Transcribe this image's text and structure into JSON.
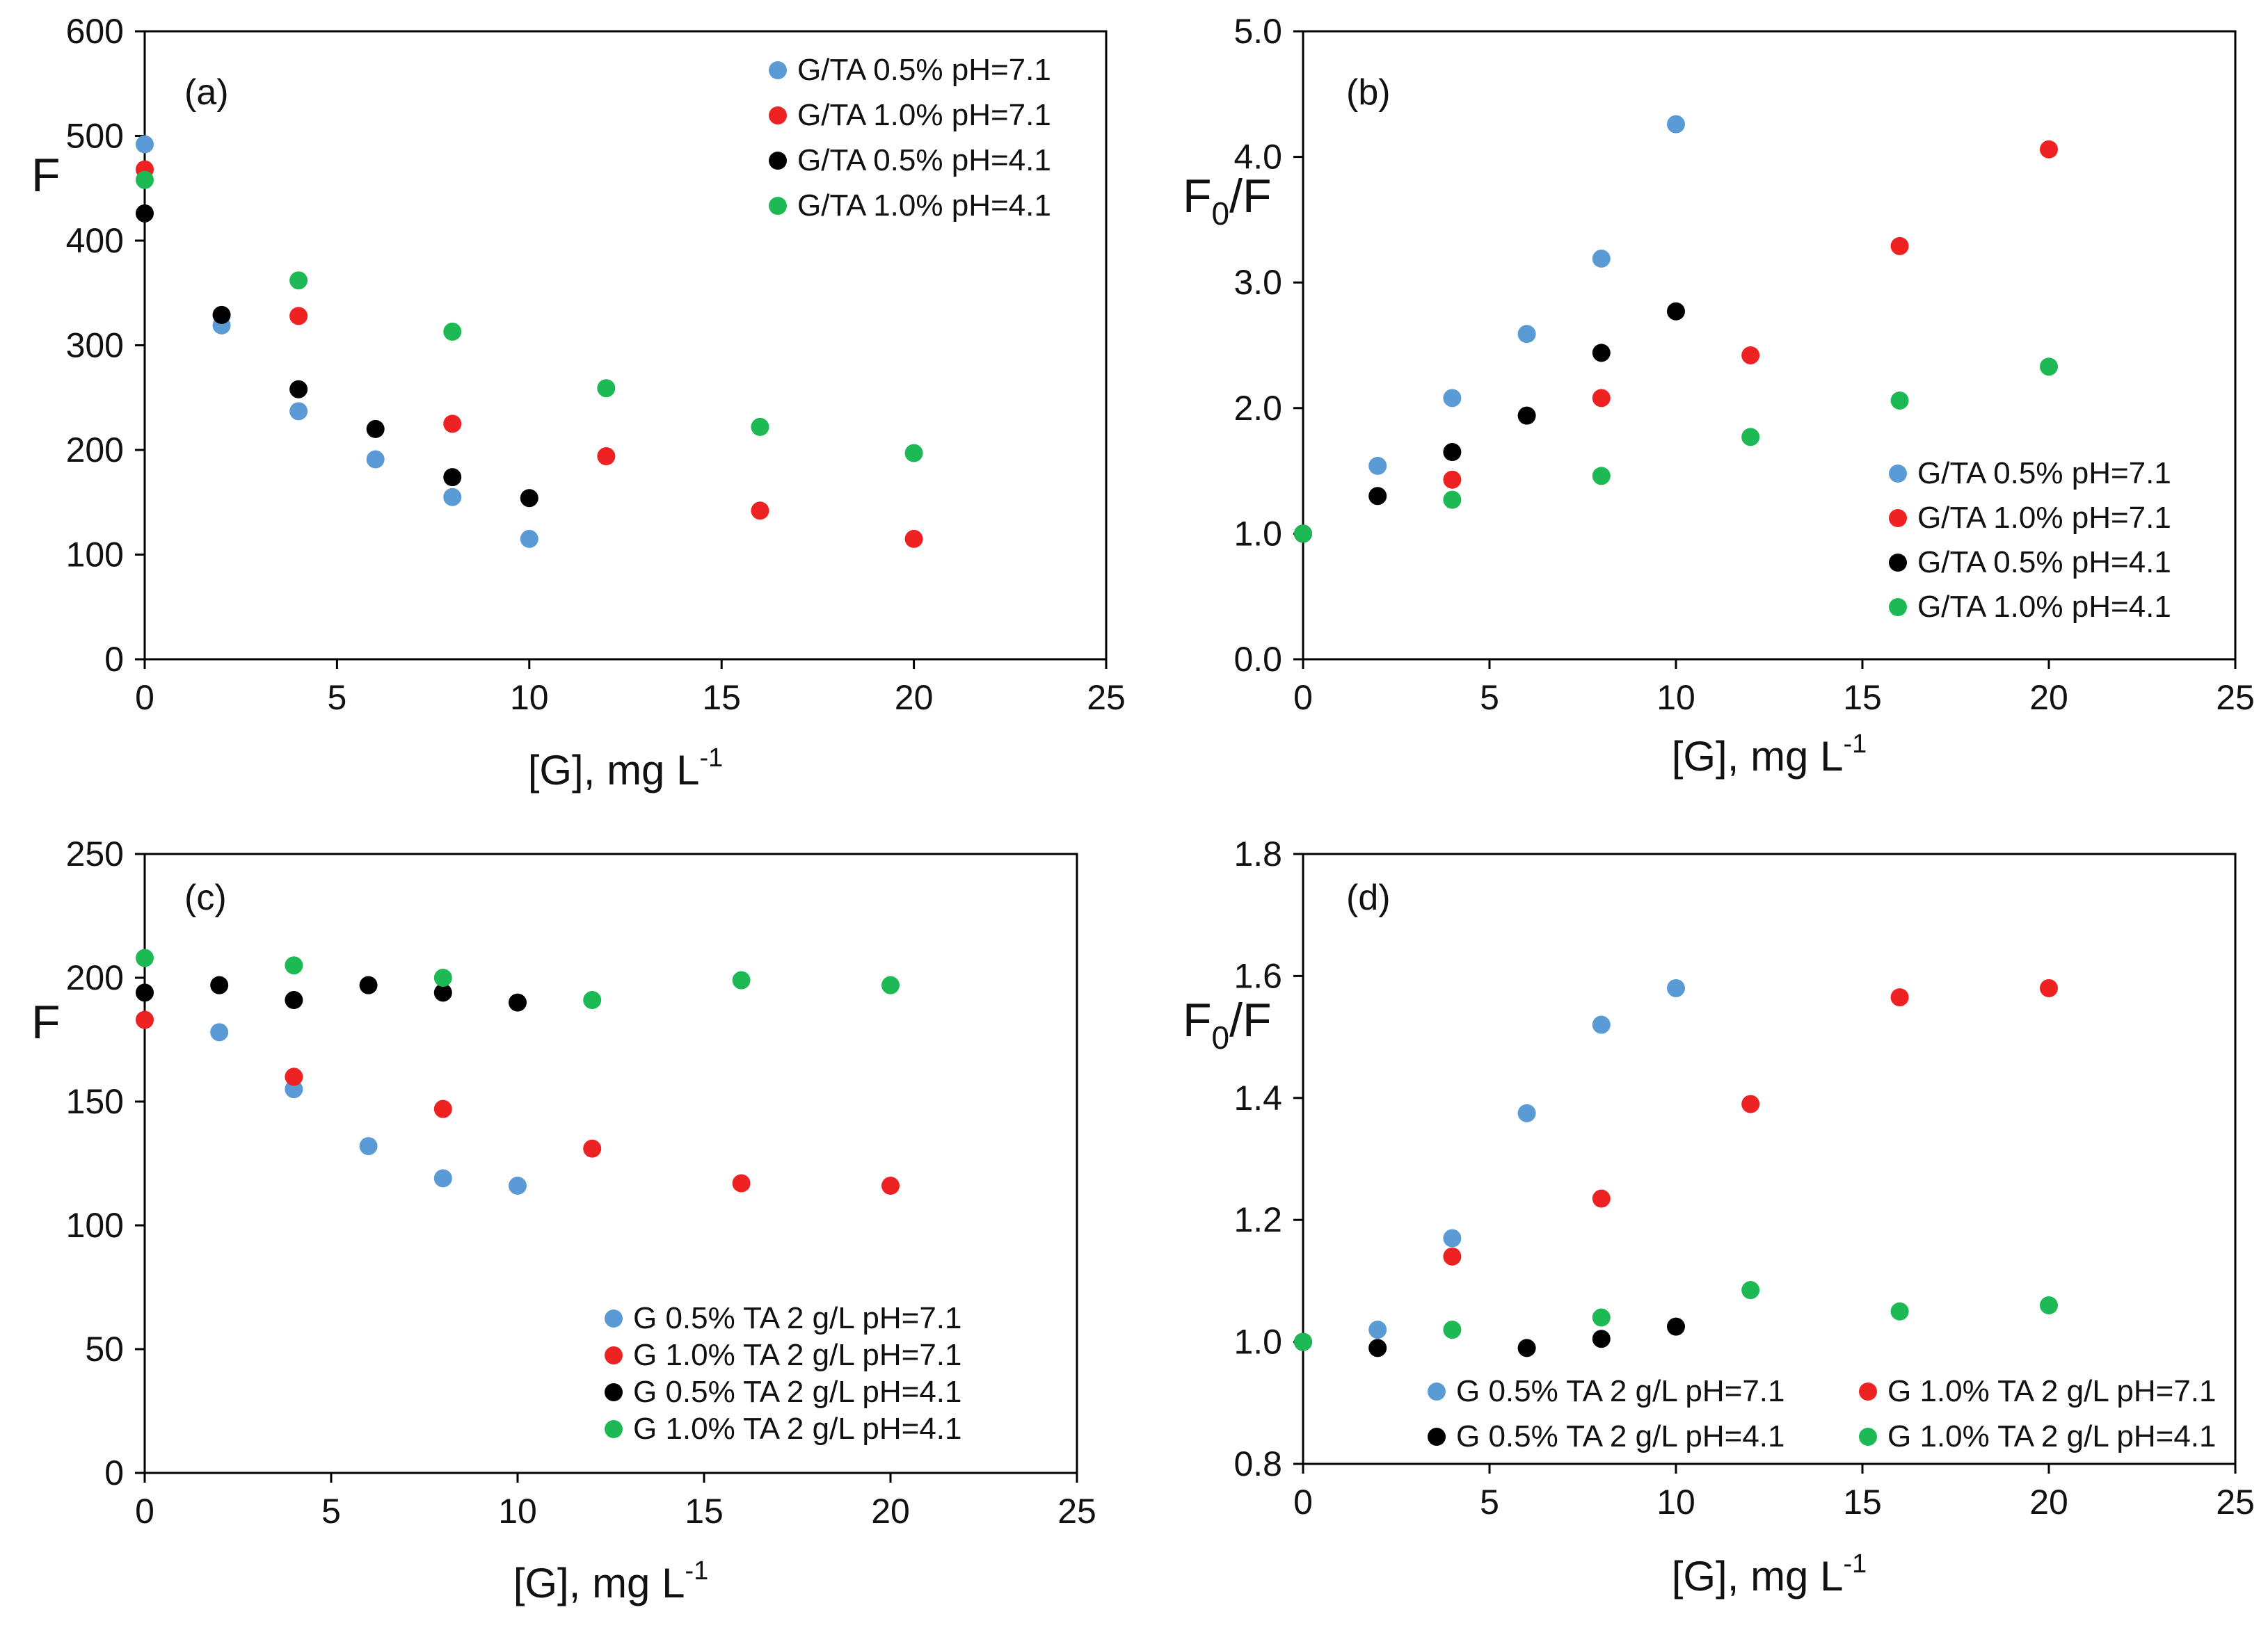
{
  "chart_data": [
    {
      "type": "scatter",
      "panel_label": "(a)",
      "xlabel": "[G], mg L",
      "xlabel_sup": "-1",
      "ylabel": "F",
      "ylabel_sub": "",
      "ylabel_tail": "",
      "xlim": [
        0,
        25
      ],
      "ylim": [
        0,
        600
      ],
      "xticks": [
        0,
        5,
        10,
        15,
        20,
        25
      ],
      "yticks": [
        0,
        100,
        200,
        300,
        400,
        500,
        600
      ],
      "ytick_labels": [
        "0",
        "100",
        "200",
        "300",
        "400",
        "500",
        "600"
      ],
      "grid": false,
      "legend_position": "top-right",
      "series": [
        {
          "name": "G/TA 0.5% pH=7.1",
          "color": "#5b9bd5",
          "x": [
            0,
            2,
            4,
            6,
            8,
            10
          ],
          "y": [
            492,
            319,
            237,
            191,
            155,
            115
          ]
        },
        {
          "name": "G/TA 1.0% pH=7.1",
          "color": "#ee2222",
          "x": [
            0,
            4,
            8,
            12,
            16,
            20
          ],
          "y": [
            468,
            328,
            225,
            194,
            142,
            115
          ]
        },
        {
          "name": "G/TA 0.5% pH=4.1",
          "color": "#000000",
          "x": [
            0,
            2,
            4,
            6,
            8,
            10
          ],
          "y": [
            426,
            329,
            258,
            220,
            174,
            154
          ]
        },
        {
          "name": "G/TA 1.0% pH=4.1",
          "color": "#1db954",
          "x": [
            0,
            4,
            8,
            12,
            16,
            20
          ],
          "y": [
            458,
            362,
            313,
            259,
            222,
            197
          ]
        }
      ]
    },
    {
      "type": "scatter",
      "panel_label": "(b)",
      "xlabel": "[G], mg L",
      "xlabel_sup": "-1",
      "ylabel": "F",
      "ylabel_sub": "0",
      "ylabel_tail": "/F",
      "xlim": [
        0,
        25
      ],
      "ylim": [
        0,
        5
      ],
      "xticks": [
        0,
        5,
        10,
        15,
        20,
        25
      ],
      "yticks": [
        0,
        1,
        2,
        3,
        4,
        5
      ],
      "ytick_labels": [
        "0.0",
        "1.0",
        "2.0",
        "3.0",
        "4.0",
        "5.0"
      ],
      "grid": false,
      "legend_position": "bottom-right",
      "series": [
        {
          "name": "G/TA 0.5% pH=7.1",
          "color": "#5b9bd5",
          "x": [
            0,
            2,
            4,
            6,
            8,
            10
          ],
          "y": [
            1.0,
            1.54,
            2.08,
            2.59,
            3.19,
            4.26
          ]
        },
        {
          "name": "G/TA 1.0% pH=7.1",
          "color": "#ee2222",
          "x": [
            0,
            4,
            8,
            12,
            16,
            20
          ],
          "y": [
            1.0,
            1.43,
            2.08,
            2.42,
            3.29,
            4.06
          ]
        },
        {
          "name": "G/TA 0.5% pH=4.1",
          "color": "#000000",
          "x": [
            0,
            2,
            4,
            6,
            8,
            10
          ],
          "y": [
            1.0,
            1.3,
            1.65,
            1.94,
            2.44,
            2.77
          ]
        },
        {
          "name": "G/TA 1.0% pH=4.1",
          "color": "#1db954",
          "x": [
            0,
            4,
            8,
            12,
            16,
            20
          ],
          "y": [
            1.0,
            1.27,
            1.46,
            1.77,
            2.06,
            2.33
          ]
        }
      ]
    },
    {
      "type": "scatter",
      "panel_label": "(c)",
      "xlabel": "[G], mg L",
      "xlabel_sup": "-1",
      "ylabel": "F",
      "ylabel_sub": "",
      "ylabel_tail": "",
      "xlim": [
        0,
        25
      ],
      "ylim": [
        0,
        250
      ],
      "xticks": [
        0,
        5,
        10,
        15,
        20,
        25
      ],
      "yticks": [
        0,
        50,
        100,
        150,
        200,
        250
      ],
      "ytick_labels": [
        "0",
        "50",
        "100",
        "150",
        "200",
        "250"
      ],
      "grid": false,
      "legend_position": "bottom-right",
      "series": [
        {
          "name": "G 0.5% TA 2 g/L pH=7.1",
          "color": "#5b9bd5",
          "x": [
            0,
            2,
            4,
            6,
            8,
            10
          ],
          "y": [
            183,
            178,
            155,
            132,
            119,
            116
          ]
        },
        {
          "name": "G 1.0% TA 2 g/L pH=7.1",
          "color": "#ee2222",
          "x": [
            0,
            4,
            8,
            12,
            16,
            20
          ],
          "y": [
            183,
            160,
            147,
            131,
            117,
            116
          ]
        },
        {
          "name": "G 0.5% TA 2 g/L pH=4.1",
          "color": "#000000",
          "x": [
            0,
            2,
            4,
            6,
            8,
            10
          ],
          "y": [
            194,
            197,
            191,
            197,
            194,
            190
          ]
        },
        {
          "name": "G 1.0% TA 2 g/L pH=4.1",
          "color": "#1db954",
          "x": [
            0,
            4,
            8,
            12,
            16,
            20
          ],
          "y": [
            208,
            205,
            200,
            191,
            199,
            197
          ]
        }
      ]
    },
    {
      "type": "scatter",
      "panel_label": "(d)",
      "xlabel": "[G], mg L",
      "xlabel_sup": "-1",
      "ylabel": "F",
      "ylabel_sub": "0",
      "ylabel_tail": "/F",
      "xlim": [
        0,
        25
      ],
      "ylim": [
        0.8,
        1.8
      ],
      "xticks": [
        0,
        5,
        10,
        15,
        20,
        25
      ],
      "yticks": [
        0.8,
        1.0,
        1.2,
        1.4,
        1.6,
        1.8
      ],
      "ytick_labels": [
        "0.8",
        "1.0",
        "1.2",
        "1.4",
        "1.6",
        "1.8"
      ],
      "grid": false,
      "legend_position": "bottom",
      "series": [
        {
          "name": "G 0.5% TA 2 g/L pH=7.1",
          "color": "#5b9bd5",
          "x": [
            0,
            2,
            4,
            6,
            8,
            10
          ],
          "y": [
            1.0,
            1.02,
            1.17,
            1.375,
            1.52,
            1.58
          ]
        },
        {
          "name": "G 1.0% TA 2 g/L pH=7.1",
          "color": "#ee2222",
          "x": [
            0,
            4,
            8,
            12,
            16,
            20
          ],
          "y": [
            1.0,
            1.14,
            1.235,
            1.39,
            1.565,
            1.58
          ]
        },
        {
          "name": "G 0.5% TA 2 g/L pH=4.1",
          "color": "#000000",
          "x": [
            0,
            2,
            6,
            8,
            10
          ],
          "y": [
            1.0,
            0.99,
            0.99,
            1.005,
            1.025
          ]
        },
        {
          "name": "G 1.0% TA 2 g/L pH=4.1",
          "color": "#1db954",
          "x": [
            0,
            4,
            8,
            12,
            16,
            20
          ],
          "y": [
            1.0,
            1.02,
            1.04,
            1.085,
            1.05,
            1.06
          ]
        }
      ]
    }
  ]
}
